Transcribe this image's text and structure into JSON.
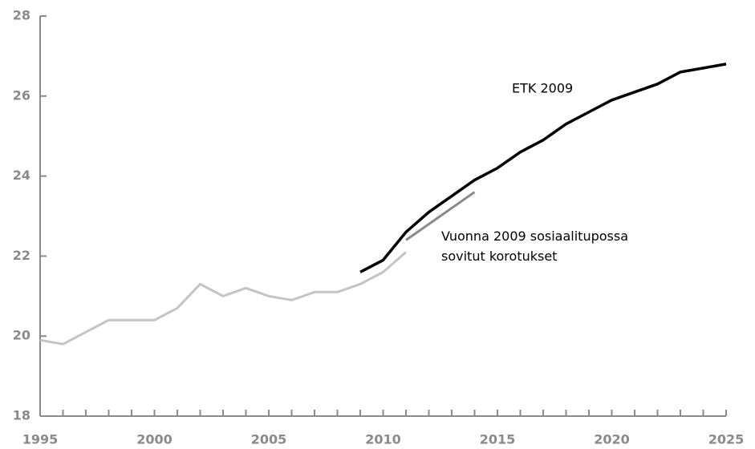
{
  "chart_data": {
    "type": "line",
    "x": [
      1995,
      1996,
      1997,
      1998,
      1999,
      2000,
      2001,
      2002,
      2003,
      2004,
      2005,
      2006,
      2007,
      2008,
      2009,
      2010,
      2011,
      2012,
      2013,
      2014,
      2015,
      2016,
      2017,
      2018,
      2019,
      2020,
      2021,
      2022,
      2023,
      2024,
      2025
    ],
    "series": [
      {
        "color": "#c4c4c4",
        "values": [
          19.9,
          19.8,
          20.1,
          20.4,
          20.4,
          20.4,
          20.7,
          21.3,
          21.0,
          21.2,
          21.0,
          20.9,
          21.1,
          21.1,
          21.3,
          21.6,
          22.1,
          null,
          null,
          null,
          null,
          null,
          null,
          null,
          null,
          null,
          null,
          null,
          null,
          null,
          null
        ]
      },
      {
        "name": "ETK 2009",
        "color": "#000000",
        "values": [
          null,
          null,
          null,
          null,
          null,
          null,
          null,
          null,
          null,
          null,
          null,
          null,
          null,
          null,
          21.6,
          21.9,
          22.6,
          23.1,
          23.5,
          23.9,
          24.2,
          24.6,
          24.9,
          25.3,
          25.6,
          25.9,
          26.1,
          26.3,
          26.6,
          26.7,
          26.8
        ]
      },
      {
        "name": "Vuonna 2009 sosiaalitupossa sovitut korotukset",
        "color": "#8a8a8a",
        "values": [
          null,
          null,
          null,
          null,
          null,
          null,
          null,
          null,
          null,
          null,
          null,
          null,
          null,
          null,
          null,
          null,
          22.4,
          22.8,
          23.2,
          23.6,
          null,
          null,
          null,
          null,
          null,
          null,
          null,
          null,
          null,
          null,
          null
        ]
      }
    ],
    "xlim": [
      1995,
      2025
    ],
    "xticks": [
      1995,
      2000,
      2005,
      2010,
      2015,
      2020,
      2025
    ],
    "ylim": [
      18,
      28
    ],
    "yticks": [
      18,
      20,
      22,
      24,
      26,
      28
    ]
  }
}
